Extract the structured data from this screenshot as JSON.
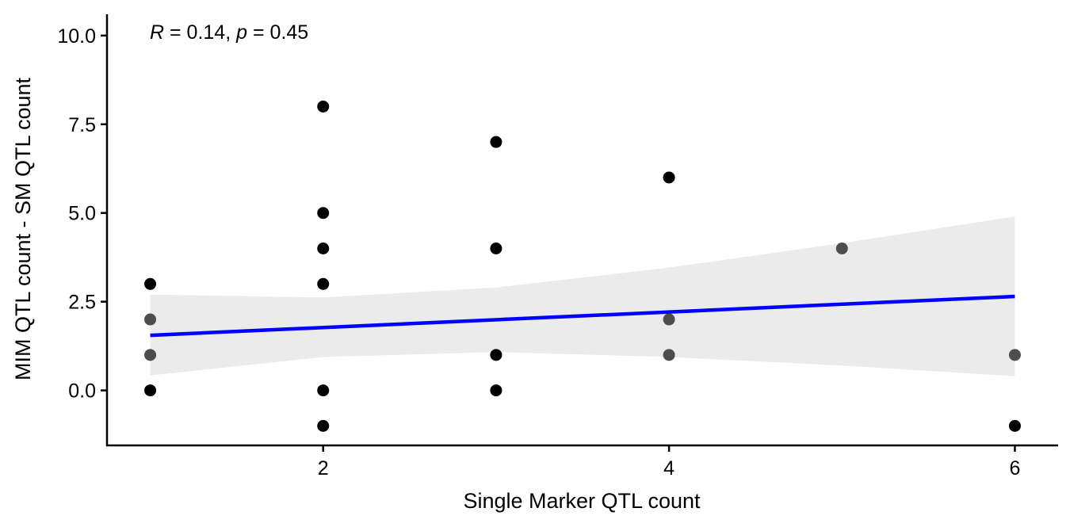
{
  "chart_data": {
    "type": "scatter",
    "title": "",
    "xlabel": "Single Marker QTL count",
    "ylabel": "MIM QTL count - SM QTL count",
    "xlim": [
      0.75,
      6.25
    ],
    "ylim": [
      -1.55,
      10.6
    ],
    "x_ticks": [
      2,
      4,
      6
    ],
    "x_tick_labels": [
      "2",
      "4",
      "6"
    ],
    "y_ticks": [
      0,
      2.5,
      5,
      7.5,
      10
    ],
    "y_tick_labels": [
      "0.0",
      "2.5",
      "5.0",
      "7.5",
      "10.0"
    ],
    "grid": false,
    "legend": "none",
    "annotation": {
      "r_symbol": "R",
      "r_value": " = 0.14, ",
      "p_symbol": "p",
      "p_value": " = 0.45",
      "position": "top-left"
    },
    "points": [
      {
        "x": 1,
        "y": 3
      },
      {
        "x": 1,
        "y": 2
      },
      {
        "x": 1,
        "y": 1
      },
      {
        "x": 1,
        "y": 0
      },
      {
        "x": 2,
        "y": 8
      },
      {
        "x": 2,
        "y": 5
      },
      {
        "x": 2,
        "y": 4
      },
      {
        "x": 2,
        "y": 3
      },
      {
        "x": 2,
        "y": 0
      },
      {
        "x": 2,
        "y": -1
      },
      {
        "x": 3,
        "y": 7
      },
      {
        "x": 3,
        "y": 4
      },
      {
        "x": 3,
        "y": 1
      },
      {
        "x": 3,
        "y": 0
      },
      {
        "x": 4,
        "y": 6
      },
      {
        "x": 4,
        "y": 2
      },
      {
        "x": 4,
        "y": 1
      },
      {
        "x": 5,
        "y": 4
      },
      {
        "x": 6,
        "y": 1
      },
      {
        "x": 6,
        "y": -1
      }
    ],
    "regression": {
      "x_range": [
        1,
        6
      ],
      "intercept": 1.334,
      "slope": 0.219,
      "ci_x": [
        1,
        2,
        3,
        4,
        5,
        6
      ],
      "ci_upper": [
        2.7,
        2.62,
        2.9,
        3.46,
        4.15,
        4.9
      ],
      "ci_lower": [
        0.42,
        0.94,
        1.08,
        0.94,
        0.7,
        0.4
      ]
    },
    "colors": {
      "point": "#000000",
      "point_in_band": "#4d4d4d",
      "line": "#0000ff",
      "band": "#ebebeb",
      "axis": "#000000"
    }
  }
}
